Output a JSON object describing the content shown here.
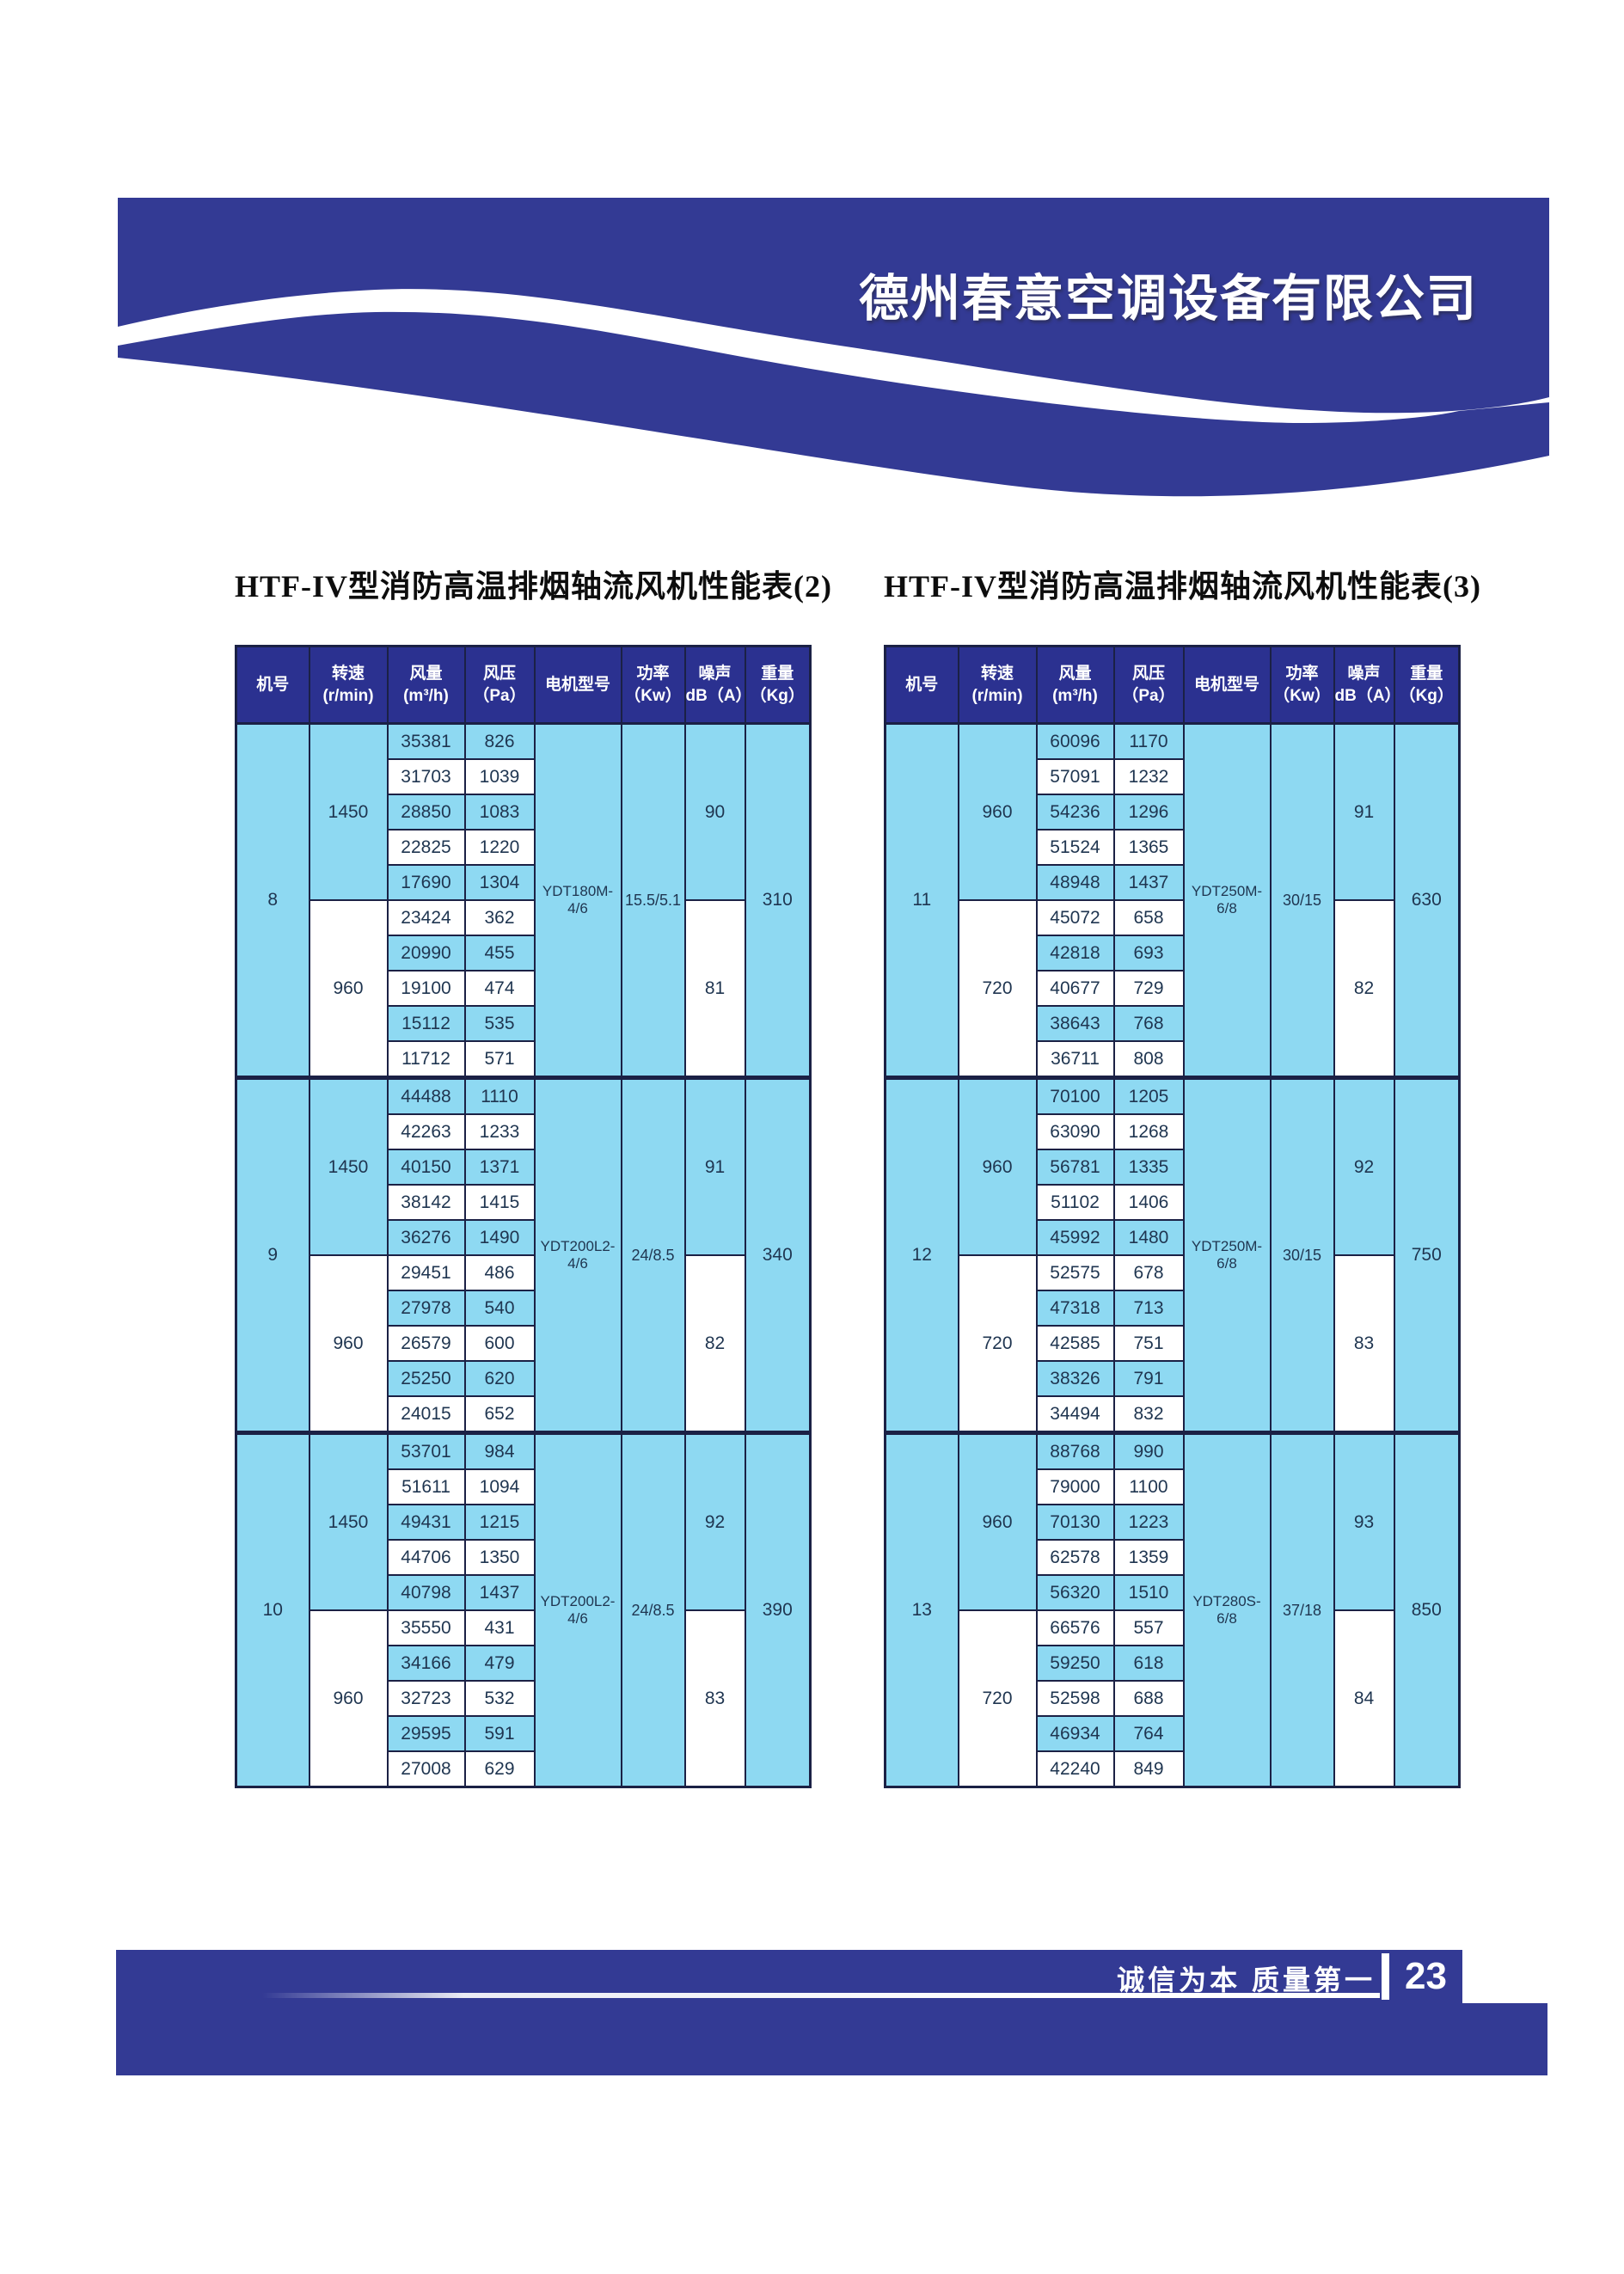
{
  "header_banner": {
    "company_name": "德州春意空调设备有限公司"
  },
  "colors": {
    "banner_blue": "#333a94",
    "table_header_blue": "#2b3190",
    "cell_light_blue": "#8ed9f2",
    "border_navy": "#1b2145",
    "footer_blue": "#333a94"
  },
  "tables": [
    {
      "title": "HTF-IV型消防高温排烟轴流风机性能表(2)",
      "columns": [
        {
          "label": "机号"
        },
        {
          "label": "转速(r/min)"
        },
        {
          "label": "风量",
          "unit": "(m³/h)"
        },
        {
          "label": "风压",
          "unit": "（Pa）"
        },
        {
          "label": "电机型号"
        },
        {
          "label": "功率",
          "unit": "（Kw）"
        },
        {
          "label": "噪声",
          "unit": "dB（A）"
        },
        {
          "label": "重量",
          "unit": "（Kg）"
        }
      ],
      "fans": [
        {
          "model_no": "8",
          "motor": "YDT180M-4/6",
          "power": "15.5/5.1",
          "weight": "310",
          "speeds": [
            {
              "rpm": "1450",
              "noise": "90",
              "rows": [
                [
                  "35381",
                  "826"
                ],
                [
                  "31703",
                  "1039"
                ],
                [
                  "28850",
                  "1083"
                ],
                [
                  "22825",
                  "1220"
                ],
                [
                  "17690",
                  "1304"
                ]
              ]
            },
            {
              "rpm": "960",
              "noise": "81",
              "rows": [
                [
                  "23424",
                  "362"
                ],
                [
                  "20990",
                  "455"
                ],
                [
                  "19100",
                  "474"
                ],
                [
                  "15112",
                  "535"
                ],
                [
                  "11712",
                  "571"
                ]
              ]
            }
          ]
        },
        {
          "model_no": "9",
          "motor": "YDT200L2-4/6",
          "power": "24/8.5",
          "weight": "340",
          "speeds": [
            {
              "rpm": "1450",
              "noise": "91",
              "rows": [
                [
                  "44488",
                  "1110"
                ],
                [
                  "42263",
                  "1233"
                ],
                [
                  "40150",
                  "1371"
                ],
                [
                  "38142",
                  "1415"
                ],
                [
                  "36276",
                  "1490"
                ]
              ]
            },
            {
              "rpm": "960",
              "noise": "82",
              "rows": [
                [
                  "29451",
                  "486"
                ],
                [
                  "27978",
                  "540"
                ],
                [
                  "26579",
                  "600"
                ],
                [
                  "25250",
                  "620"
                ],
                [
                  "24015",
                  "652"
                ]
              ]
            }
          ]
        },
        {
          "model_no": "10",
          "motor": "YDT200L2-4/6",
          "power": "24/8.5",
          "weight": "390",
          "speeds": [
            {
              "rpm": "1450",
              "noise": "92",
              "rows": [
                [
                  "53701",
                  "984"
                ],
                [
                  "51611",
                  "1094"
                ],
                [
                  "49431",
                  "1215"
                ],
                [
                  "44706",
                  "1350"
                ],
                [
                  "40798",
                  "1437"
                ]
              ]
            },
            {
              "rpm": "960",
              "noise": "83",
              "rows": [
                [
                  "35550",
                  "431"
                ],
                [
                  "34166",
                  "479"
                ],
                [
                  "32723",
                  "532"
                ],
                [
                  "29595",
                  "591"
                ],
                [
                  "27008",
                  "629"
                ]
              ]
            }
          ]
        }
      ]
    },
    {
      "title": "HTF-IV型消防高温排烟轴流风机性能表(3)",
      "columns": [
        {
          "label": "机号"
        },
        {
          "label": "转速(r/min)"
        },
        {
          "label": "风量",
          "unit": "(m³/h)"
        },
        {
          "label": "风压",
          "unit": "（Pa）"
        },
        {
          "label": "电机型号"
        },
        {
          "label": "功率",
          "unit": "（Kw）"
        },
        {
          "label": "噪声",
          "unit": "dB（A）"
        },
        {
          "label": "重量",
          "unit": "（Kg）"
        }
      ],
      "fans": [
        {
          "model_no": "11",
          "motor": "YDT250M-6/8",
          "power": "30/15",
          "weight": "630",
          "speeds": [
            {
              "rpm": "960",
              "noise": "91",
              "rows": [
                [
                  "60096",
                  "1170"
                ],
                [
                  "57091",
                  "1232"
                ],
                [
                  "54236",
                  "1296"
                ],
                [
                  "51524",
                  "1365"
                ],
                [
                  "48948",
                  "1437"
                ]
              ]
            },
            {
              "rpm": "720",
              "noise": "82",
              "rows": [
                [
                  "45072",
                  "658"
                ],
                [
                  "42818",
                  "693"
                ],
                [
                  "40677",
                  "729"
                ],
                [
                  "38643",
                  "768"
                ],
                [
                  "36711",
                  "808"
                ]
              ]
            }
          ]
        },
        {
          "model_no": "12",
          "motor": "YDT250M-6/8",
          "power": "30/15",
          "weight": "750",
          "speeds": [
            {
              "rpm": "960",
              "noise": "92",
              "rows": [
                [
                  "70100",
                  "1205"
                ],
                [
                  "63090",
                  "1268"
                ],
                [
                  "56781",
                  "1335"
                ],
                [
                  "51102",
                  "1406"
                ],
                [
                  "45992",
                  "1480"
                ]
              ]
            },
            {
              "rpm": "720",
              "noise": "83",
              "rows": [
                [
                  "52575",
                  "678"
                ],
                [
                  "47318",
                  "713"
                ],
                [
                  "42585",
                  "751"
                ],
                [
                  "38326",
                  "791"
                ],
                [
                  "34494",
                  "832"
                ]
              ]
            }
          ]
        },
        {
          "model_no": "13",
          "motor": "YDT280S-6/8",
          "power": "37/18",
          "weight": "850",
          "speeds": [
            {
              "rpm": "960",
              "noise": "93",
              "rows": [
                [
                  "88768",
                  "990"
                ],
                [
                  "79000",
                  "1100"
                ],
                [
                  "70130",
                  "1223"
                ],
                [
                  "62578",
                  "1359"
                ],
                [
                  "56320",
                  "1510"
                ]
              ]
            },
            {
              "rpm": "720",
              "noise": "84",
              "rows": [
                [
                  "66576",
                  "557"
                ],
                [
                  "59250",
                  "618"
                ],
                [
                  "52598",
                  "688"
                ],
                [
                  "46934",
                  "764"
                ],
                [
                  "42240",
                  "849"
                ]
              ]
            }
          ]
        }
      ]
    }
  ],
  "footer": {
    "slogan": "诚信为本  质量第一",
    "page_number": "23"
  }
}
